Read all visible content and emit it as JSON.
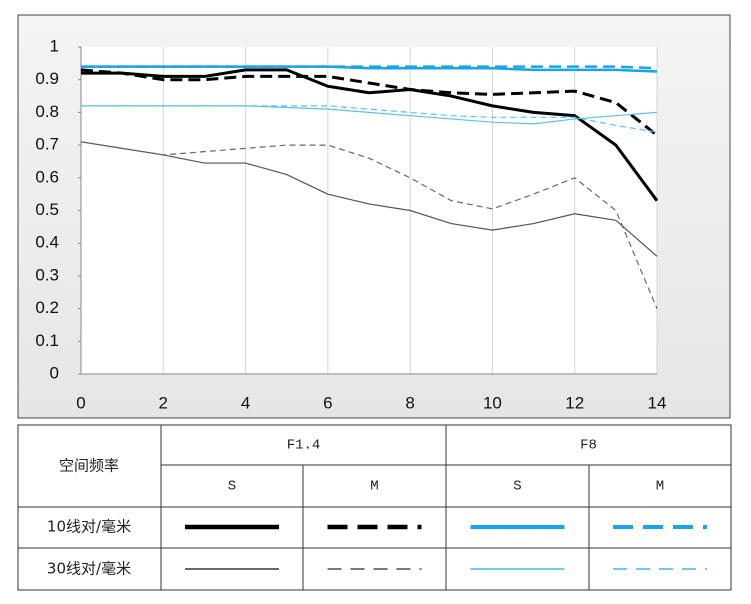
{
  "chart_data": {
    "type": "line",
    "x": [
      0,
      1,
      2,
      3,
      4,
      5,
      6,
      7,
      8,
      9,
      10,
      11,
      12,
      13,
      14
    ],
    "xlim": [
      0,
      14
    ],
    "xticks": [
      0,
      2,
      4,
      6,
      8,
      10,
      12,
      14
    ],
    "ylim": [
      0,
      1
    ],
    "yticks": [
      0,
      0.1,
      0.2,
      0.3,
      0.4,
      0.5,
      0.6,
      0.7,
      0.8,
      0.9,
      1
    ],
    "grid": "x",
    "series": [
      {
        "color": "#000000",
        "width": 3,
        "dash": false,
        "values": [
          0.92,
          0.92,
          0.91,
          0.91,
          0.93,
          0.93,
          0.88,
          0.86,
          0.87,
          0.85,
          0.82,
          0.8,
          0.79,
          0.7,
          0.53
        ]
      },
      {
        "color": "#000000",
        "width": 3,
        "dash": true,
        "values": [
          0.93,
          0.92,
          0.9,
          0.9,
          0.91,
          0.91,
          0.91,
          0.89,
          0.87,
          0.86,
          0.855,
          0.86,
          0.865,
          0.83,
          0.73
        ]
      },
      {
        "color": "#1aa3e8",
        "width": 2.5,
        "dash": false,
        "values": [
          0.94,
          0.94,
          0.94,
          0.94,
          0.94,
          0.94,
          0.94,
          0.935,
          0.935,
          0.935,
          0.935,
          0.93,
          0.93,
          0.93,
          0.925
        ]
      },
      {
        "color": "#1aa3e8",
        "width": 2.5,
        "dash": true,
        "values": [
          0.94,
          0.94,
          0.94,
          0.94,
          0.94,
          0.94,
          0.94,
          0.94,
          0.94,
          0.94,
          0.94,
          0.94,
          0.94,
          0.94,
          0.935
        ]
      },
      {
        "color": "#555555",
        "width": 1.2,
        "dash": false,
        "values": [
          0.71,
          0.69,
          0.67,
          0.645,
          0.645,
          0.61,
          0.55,
          0.52,
          0.5,
          0.46,
          0.44,
          0.46,
          0.49,
          0.47,
          0.36
        ]
      },
      {
        "color": "#666666",
        "width": 1.2,
        "dash": true,
        "values": [
          0.71,
          0.69,
          0.67,
          0.68,
          0.69,
          0.7,
          0.7,
          0.66,
          0.6,
          0.53,
          0.505,
          0.55,
          0.6,
          0.5,
          0.2
        ]
      },
      {
        "color": "#5bc0f0",
        "width": 1.2,
        "dash": false,
        "values": [
          0.82,
          0.82,
          0.82,
          0.82,
          0.82,
          0.815,
          0.81,
          0.8,
          0.79,
          0.78,
          0.77,
          0.765,
          0.78,
          0.79,
          0.8
        ]
      },
      {
        "color": "#5bc0f0",
        "width": 1.2,
        "dash": true,
        "values": [
          0.82,
          0.82,
          0.82,
          0.82,
          0.82,
          0.82,
          0.82,
          0.81,
          0.8,
          0.79,
          0.785,
          0.785,
          0.785,
          0.76,
          0.74
        ]
      }
    ]
  },
  "legend_table": {
    "corner": "空间频率",
    "apertures": [
      "F1.4",
      "F8"
    ],
    "types": [
      "S",
      "M",
      "S",
      "M"
    ],
    "rows": [
      "10线对/毫米",
      "30线对/毫米"
    ]
  }
}
